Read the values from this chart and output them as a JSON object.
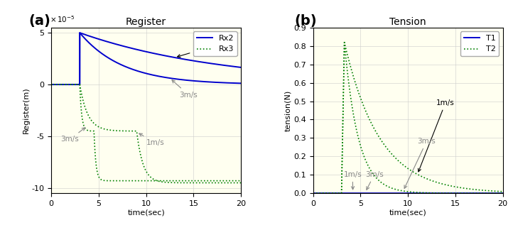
{
  "panel_a": {
    "title": "Register",
    "xlabel": "time(sec)",
    "ylabel": "Register(m)",
    "xlim": [
      0,
      20
    ],
    "ylim": [
      -0.0001,
      5.5e-05
    ],
    "yticks": [
      -0.0001,
      -5e-05,
      0,
      5e-05
    ],
    "ytick_labels": [
      "-10",
      "-5",
      "0",
      "5"
    ],
    "scale_label": "x 10⁻⁵",
    "legend": [
      "Rx2",
      "Rx3"
    ]
  },
  "panel_b": {
    "title": "Tension",
    "xlabel": "time(sec)",
    "ylabel": "tension(N)",
    "xlim": [
      0,
      20
    ],
    "ylim": [
      0,
      0.9
    ],
    "yticks": [
      0.0,
      0.1,
      0.2,
      0.3,
      0.4,
      0.5,
      0.6,
      0.7,
      0.8,
      0.9
    ],
    "legend": [
      "T1",
      "T2"
    ]
  },
  "blue_color": "#0000CD",
  "green_color": "#008000",
  "ann_color": "#888888",
  "bg_color": "#FFFFF0",
  "panel_label_fontsize": 14,
  "title_fontsize": 10,
  "axis_label_fontsize": 8,
  "tick_fontsize": 8,
  "legend_fontsize": 8,
  "annotation_fontsize": 7.5
}
